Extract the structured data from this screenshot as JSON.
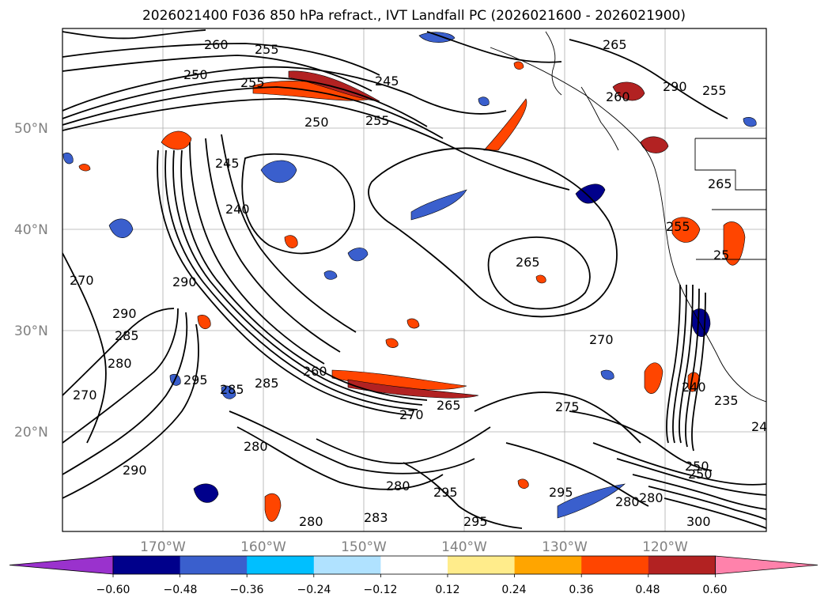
{
  "title": "2026021400 F036 850 hPa refract., IVT Landfall PC (2026021600 - 2026021900)",
  "lat_labels": [
    "50°N",
    "40°N",
    "30°N",
    "20°N"
  ],
  "lon_labels": [
    "170°W",
    "160°W",
    "150°W",
    "140°W",
    "130°W",
    "120°W"
  ],
  "colorbar": {
    "tick_labels": [
      "−0.60",
      "−0.48",
      "−0.36",
      "−0.24",
      "−0.12",
      "0.12",
      "0.24",
      "0.36",
      "0.48",
      "0.60"
    ],
    "colors": [
      "#9a32cd",
      "#00008b",
      "#3a5fcd",
      "#00bfff",
      "#b0e2ff",
      "#ffffff",
      "#ffec8b",
      "#ffa500",
      "#ff4500",
      "#b22222",
      "#ff82ab"
    ]
  },
  "contour_labels": [
    "260",
    "255",
    "250",
    "255",
    "245",
    "250",
    "255",
    "260",
    "265",
    "255",
    "290",
    "240",
    "245",
    "265",
    "290",
    "290",
    "270",
    "285",
    "295",
    "280",
    "285",
    "280",
    "260",
    "270",
    "265",
    "295",
    "280",
    "295",
    "300",
    "250",
    "280",
    "290",
    "283",
    "280",
    "295",
    "250",
    "265",
    "255",
    "270",
    "240",
    "235",
    "24",
    "285",
    "280",
    "270",
    "275",
    "25"
  ]
}
